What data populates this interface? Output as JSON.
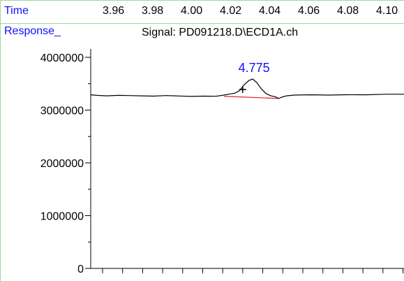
{
  "header": {
    "time_label": "Time",
    "time_ticks": [
      "3.96",
      "3.98",
      "4.00",
      "4.02",
      "4.04",
      "4.06",
      "4.08",
      "4.10"
    ],
    "response_label": "Response_",
    "signal_title": "Signal: PD091218.D\\ECD1A.ch"
  },
  "chart_data": {
    "type": "line",
    "title": "Signal: PD091218.D\\ECD1A.ch",
    "xlabel": "Time",
    "ylabel": "Response_",
    "ylim": [
      0,
      4500000
    ],
    "yticks": [
      0,
      1000000,
      2000000,
      3000000,
      4000000
    ],
    "ytick_labels": [
      "0",
      "1000000",
      "2000000",
      "3000000",
      "4000000"
    ],
    "x_tick_labels": [
      "3.96",
      "3.98",
      "4.00",
      "4.02",
      "4.04",
      "4.06",
      "4.08",
      "4.10"
    ],
    "series": [
      {
        "color": "#000000",
        "trace": [
          [
            0.0,
            3290000
          ],
          [
            0.02,
            3280000
          ],
          [
            0.05,
            3270000
          ],
          [
            0.09,
            3280000
          ],
          [
            0.12,
            3275000
          ],
          [
            0.16,
            3270000
          ],
          [
            0.2,
            3265000
          ],
          [
            0.24,
            3275000
          ],
          [
            0.28,
            3268000
          ],
          [
            0.32,
            3260000
          ],
          [
            0.36,
            3265000
          ],
          [
            0.4,
            3262000
          ],
          [
            0.42,
            3280000
          ],
          [
            0.44,
            3300000
          ],
          [
            0.46,
            3320000
          ],
          [
            0.475,
            3370000
          ],
          [
            0.49,
            3480000
          ],
          [
            0.505,
            3560000
          ],
          [
            0.517,
            3590000
          ],
          [
            0.53,
            3520000
          ],
          [
            0.545,
            3400000
          ],
          [
            0.56,
            3310000
          ],
          [
            0.575,
            3270000
          ],
          [
            0.59,
            3250000
          ],
          [
            0.6,
            3220000
          ],
          [
            0.61,
            3245000
          ],
          [
            0.625,
            3270000
          ],
          [
            0.65,
            3285000
          ],
          [
            0.7,
            3290000
          ],
          [
            0.76,
            3285000
          ],
          [
            0.82,
            3292000
          ],
          [
            0.88,
            3290000
          ],
          [
            0.94,
            3300000
          ],
          [
            1.0,
            3300000
          ]
        ]
      }
    ],
    "baseline": {
      "color": "#e02020",
      "points": [
        [
          0.425,
          3262000
        ],
        [
          0.6,
          3220000
        ]
      ]
    },
    "peak": {
      "label": "4.775",
      "color": "#1010ff",
      "x": 0.517,
      "y": 3590000
    },
    "marker": {
      "symbol": "+",
      "x": 0.485,
      "y": 3390000
    }
  }
}
